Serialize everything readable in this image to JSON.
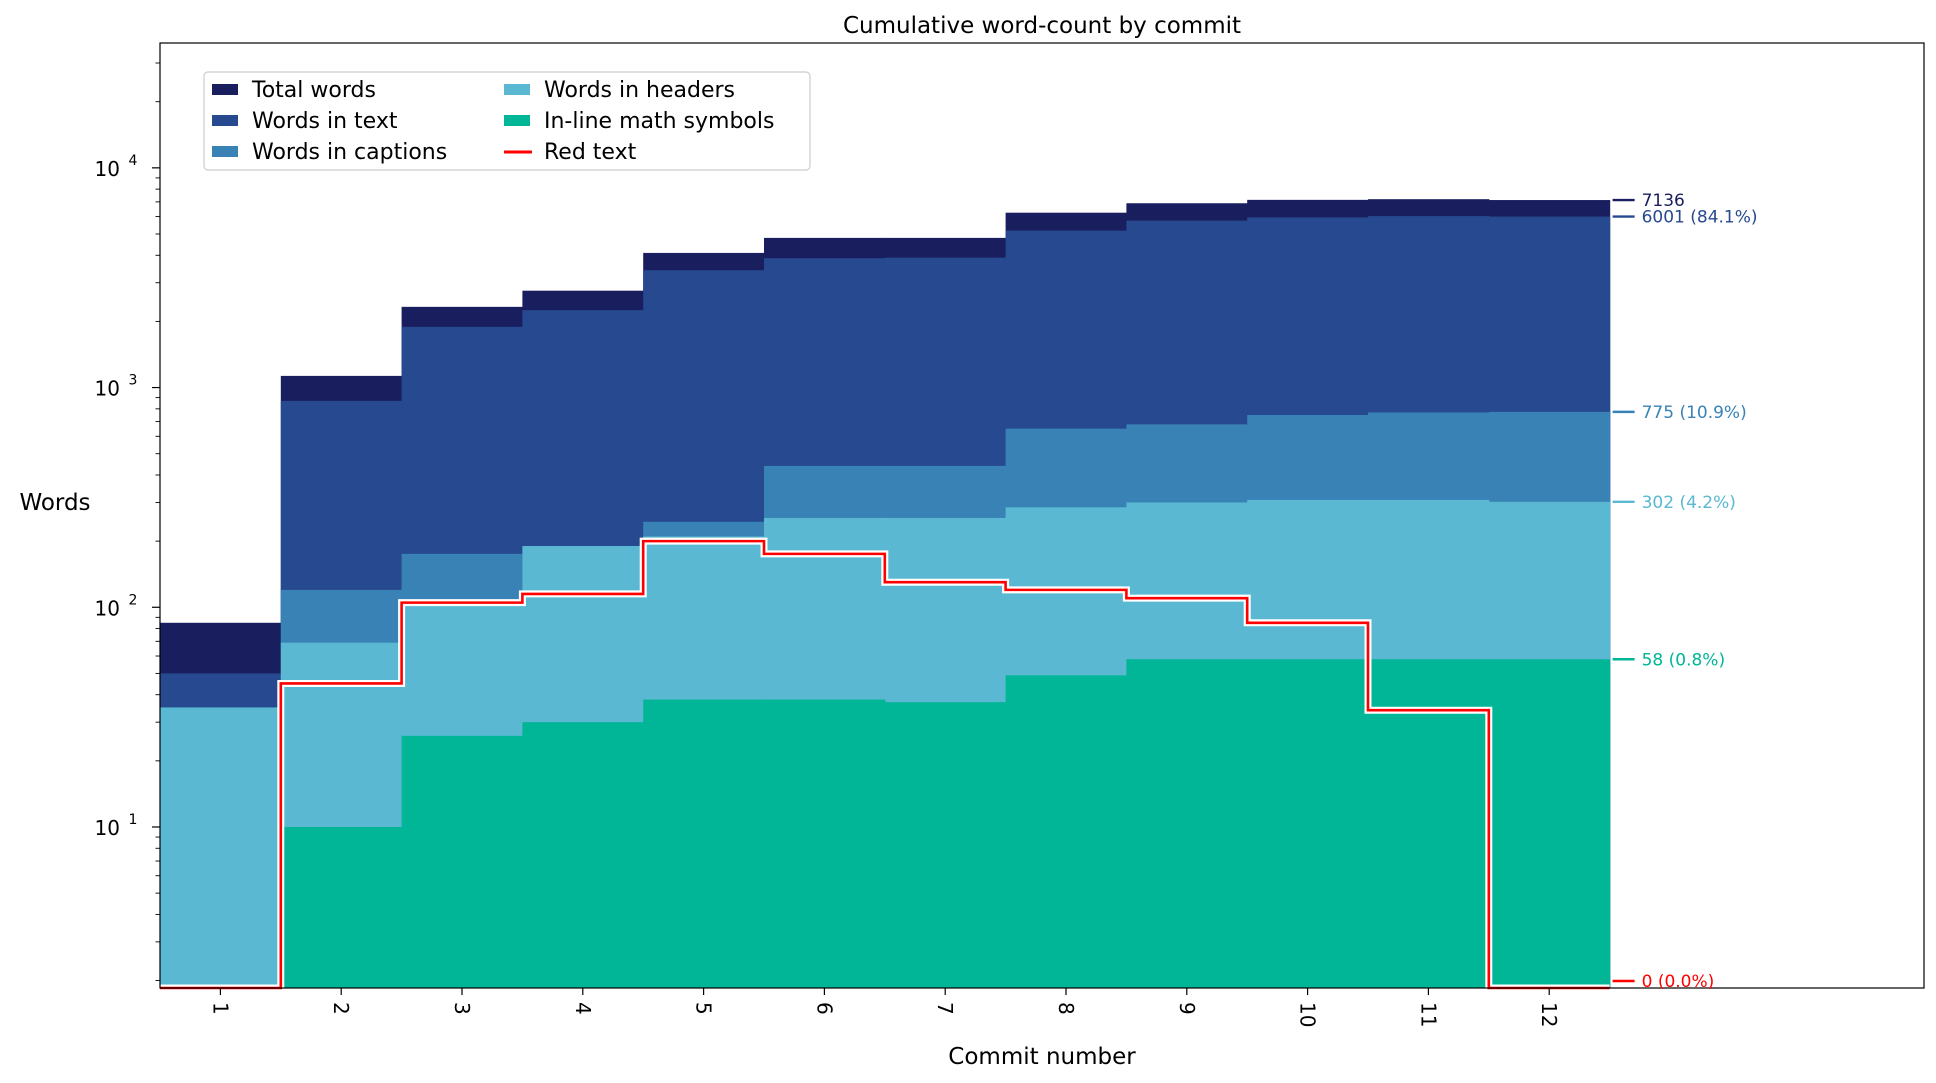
{
  "chart_data": {
    "type": "area",
    "title": "Cumulative word-count by commit",
    "xlabel": "Commit number",
    "ylabel": "Words",
    "yscale": "log",
    "ylim": [
      1.85,
      37000
    ],
    "y_tick_labels": [
      "10",
      "10",
      "10",
      "10"
    ],
    "y_tick_exponents": [
      "1",
      "2",
      "3",
      "4"
    ],
    "y_tick_values": [
      10,
      100,
      1000,
      10000
    ],
    "categories": [
      "1",
      "2",
      "3",
      "4",
      "5",
      "6",
      "7",
      "8",
      "9",
      "10",
      "11",
      "12"
    ],
    "legend_position": "upper-left",
    "series": [
      {
        "name": "Total words",
        "color": "#191f5e",
        "values": [
          85,
          1130,
          2330,
          2760,
          4100,
          4800,
          4800,
          6250,
          6900,
          7150,
          7200,
          7136
        ]
      },
      {
        "name": "Words in text",
        "color": "#27498f",
        "values": [
          50,
          870,
          1890,
          2250,
          3420,
          3880,
          3900,
          5180,
          5750,
          5950,
          6030,
          6001
        ]
      },
      {
        "name": "Words in captions",
        "color": "#3882b6",
        "values": [
          35,
          120,
          175,
          190,
          245,
          440,
          440,
          650,
          680,
          750,
          770,
          775
        ]
      },
      {
        "name": "Words in headers",
        "color": "#5bb8d2",
        "values": [
          35,
          69,
          104,
          190,
          210,
          255,
          255,
          285,
          300,
          308,
          308,
          302
        ]
      },
      {
        "name": "In-line math symbols",
        "color": "#00b697",
        "values": [
          0,
          10,
          26,
          30,
          38,
          38,
          37,
          49,
          58,
          58,
          58,
          58
        ]
      }
    ],
    "red_text": {
      "name": "Red text",
      "color": "#ff0000",
      "values": [
        0,
        45,
        105,
        115,
        200,
        175,
        130,
        120,
        110,
        85,
        34,
        0
      ]
    },
    "end_labels": [
      {
        "text": "7136",
        "color": "#191f5e",
        "value": 7136
      },
      {
        "text": "6001 (84.1%)",
        "color": "#27498f",
        "value": 6001
      },
      {
        "text": "775 (10.9%)",
        "color": "#3882b6",
        "value": 775
      },
      {
        "text": "302 (4.2%)",
        "color": "#5bb8d2",
        "value": 302
      },
      {
        "text": "58 (0.8%)",
        "color": "#00b697",
        "value": 58
      },
      {
        "text": "0 (0.0%)",
        "color": "#ff0000",
        "value": 0
      }
    ]
  }
}
